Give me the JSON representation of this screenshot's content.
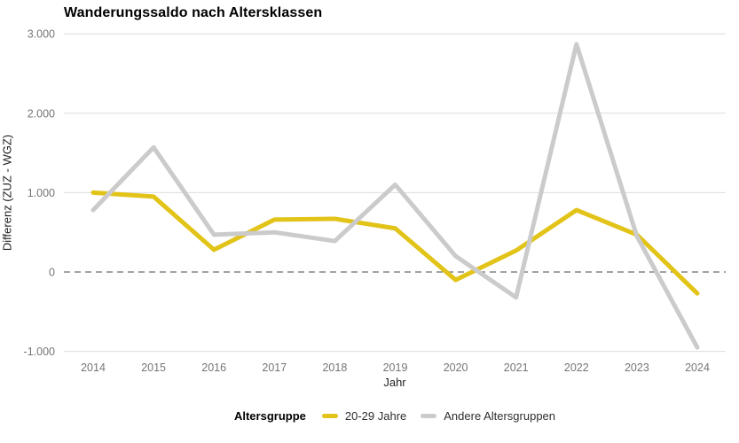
{
  "title": "Wanderungssaldo nach Altersklassen",
  "axes": {
    "x_label": "Jahr",
    "y_label": "Differenz (ZUZ - WGZ)"
  },
  "legend": {
    "title": "Altersgruppe",
    "items": [
      {
        "label": "20-29 Jahre",
        "color": "#E2C318"
      },
      {
        "label": "Andere Altersgruppen",
        "color": "#CBCBCB"
      }
    ]
  },
  "colors": {
    "background": "#FFFFFF",
    "gridline": "#DDDDDD",
    "zero_line": "#6B6B6B",
    "tick_text": "#757575",
    "axis_title_text": "#1F1F1F",
    "title_text": "#000000"
  },
  "chart_data": {
    "type": "line",
    "title": "Wanderungssaldo nach Altersklassen",
    "xlabel": "Jahr",
    "ylabel": "Differenz (ZUZ - WGZ)",
    "x": [
      2014,
      2015,
      2016,
      2017,
      2018,
      2019,
      2020,
      2021,
      2022,
      2023,
      2024
    ],
    "series": [
      {
        "name": "20-29 Jahre",
        "color": "#E2C318",
        "values": [
          1000,
          950,
          280,
          660,
          670,
          550,
          -100,
          270,
          780,
          470,
          -270
        ]
      },
      {
        "name": "Andere Altersgruppen",
        "color": "#CBCBCB",
        "values": [
          780,
          1570,
          470,
          500,
          390,
          1100,
          200,
          -320,
          2870,
          450,
          -950
        ]
      }
    ],
    "ylim": [
      -1000,
      3000
    ],
    "yticks": [
      {
        "value": 3000,
        "label": "3.000"
      },
      {
        "value": 2000,
        "label": "2.000"
      },
      {
        "value": 1000,
        "label": "1.000"
      },
      {
        "value": 0,
        "label": "0"
      },
      {
        "value": -1000,
        "label": "-1.000"
      }
    ],
    "grid": "horizontal",
    "zero_line_style": "dashed",
    "legend_position": "bottom"
  }
}
